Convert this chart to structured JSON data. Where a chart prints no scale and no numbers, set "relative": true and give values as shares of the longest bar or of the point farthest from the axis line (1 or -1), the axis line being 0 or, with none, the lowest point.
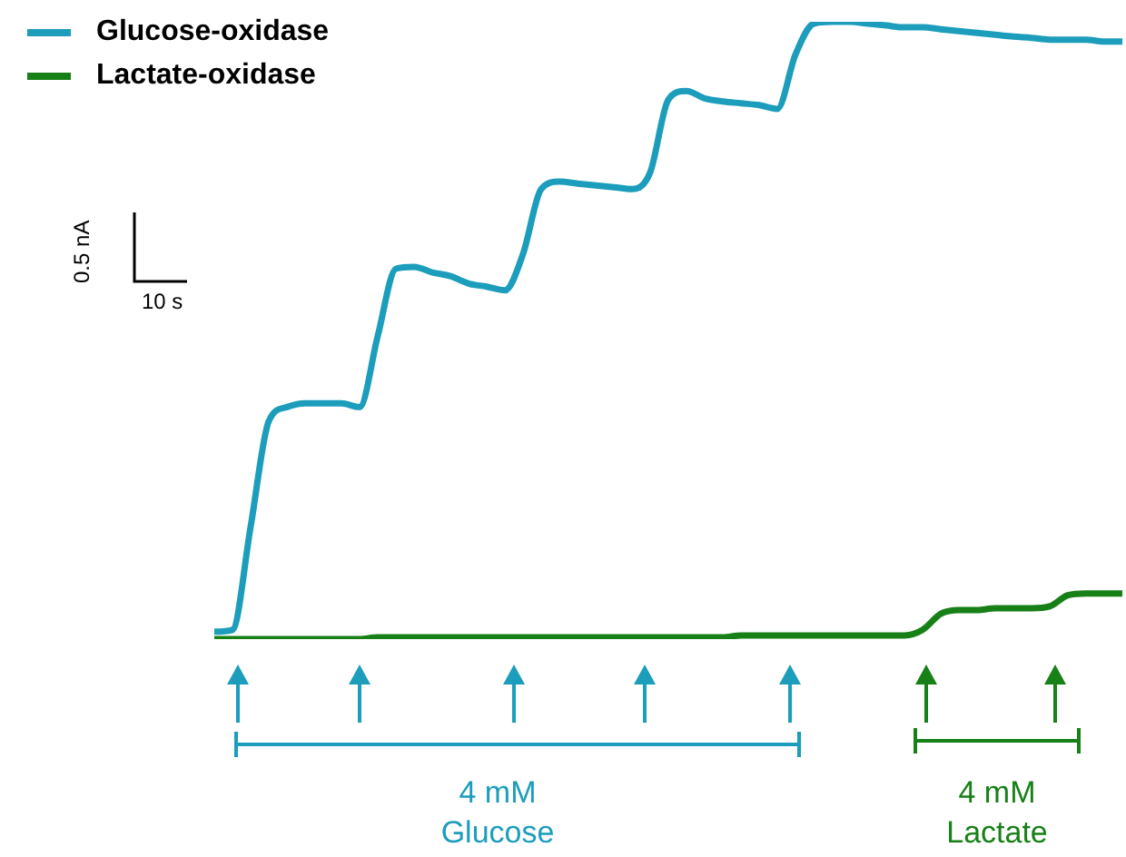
{
  "chart_data": {
    "type": "line",
    "relative": true,
    "legend": "top left",
    "categories": [
      null,
      null,
      null,
      null,
      null,
      null,
      null,
      null,
      null,
      null,
      null,
      null,
      null,
      null,
      null,
      null,
      null,
      null,
      null,
      null,
      null,
      null,
      null,
      null,
      null,
      null,
      null,
      null,
      null,
      null,
      null,
      null,
      null,
      null,
      null,
      null,
      null,
      null,
      null,
      null,
      null,
      null,
      null,
      null,
      null,
      null,
      null,
      null,
      null,
      null,
      null
    ],
    "series": [
      {
        "name": "Glucose-oxidase",
        "color": "#1b9dbb",
        "values": [
          0.012,
          0.015,
          0.182,
          0.353,
          0.376,
          0.382,
          0.382,
          0.382,
          0.376,
          0.491,
          0.6,
          0.603,
          0.594,
          0.588,
          0.576,
          0.571,
          0.565,
          0.624,
          0.729,
          0.741,
          0.738,
          0.735,
          0.732,
          0.729,
          0.756,
          0.874,
          0.888,
          0.876,
          0.871,
          0.868,
          0.865,
          0.859,
          0.947,
          0.997,
          1,
          1,
          0.997,
          0.994,
          0.991,
          0.991,
          0.988,
          0.985,
          0.982,
          0.979,
          0.976,
          0.974,
          0.971,
          0.971,
          0.971,
          0.968,
          0.968
        ]
      },
      {
        "name": "Lactate-oxidase",
        "color": "#178017",
        "values": [
          0,
          0,
          0,
          0,
          0,
          0,
          0,
          0,
          0,
          0.003,
          0.003,
          0.003,
          0.003,
          0.003,
          0.003,
          0.003,
          0.003,
          0.003,
          0.003,
          0.003,
          0.003,
          0.003,
          0.003,
          0.003,
          0.003,
          0.003,
          0.003,
          0.003,
          0.003,
          0.006,
          0.006,
          0.006,
          0.006,
          0.006,
          0.006,
          0.006,
          0.006,
          0.006,
          0.006,
          0.015,
          0.041,
          0.047,
          0.047,
          0.05,
          0.05,
          0.05,
          0.053,
          0.071,
          0.074,
          0.074,
          0.074
        ]
      }
    ],
    "annotations": [
      "0.5 nA",
      "10 s",
      "4 mM\nGlucose",
      "4 mM\nLactate"
    ]
  }
}
